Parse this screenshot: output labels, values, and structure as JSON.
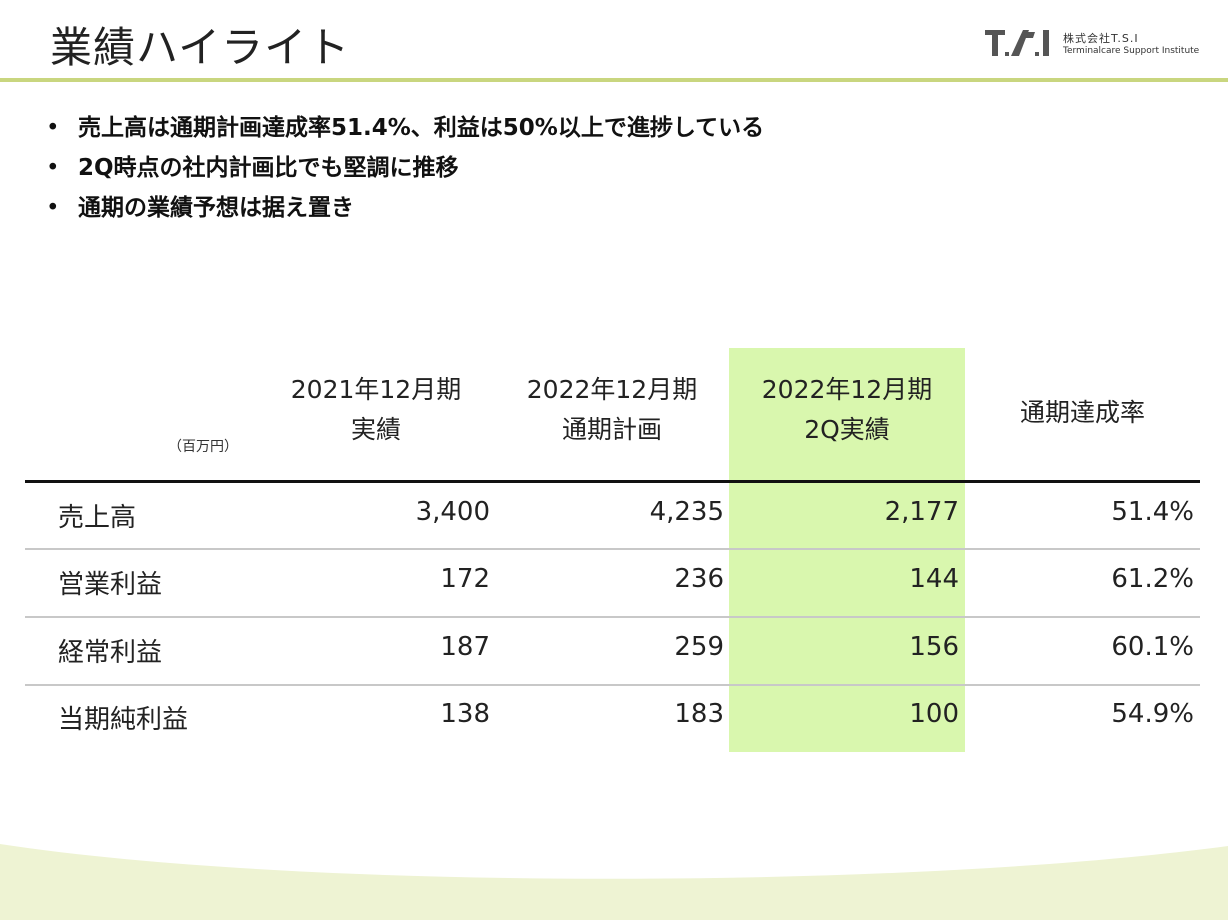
{
  "header": {
    "title": "業績ハイライト",
    "logo": {
      "mark_text": "T.S.I",
      "company": "株式会社T.S.I",
      "sub": "Terminalcare Support Institute"
    }
  },
  "bullets": [
    "売上高は通期計画達成率51.4%、利益は50%以上で進捗している",
    "2Q時点の社内計画比でも堅調に推移",
    "通期の業績予想は据え置き"
  ],
  "table": {
    "unit": "（百万円）",
    "columns": [
      {
        "line1": "2021年12月期",
        "line2": "実績"
      },
      {
        "line1": "2022年12月期",
        "line2": "通期計画"
      },
      {
        "line1": "2022年12月期",
        "line2": "2Q実績"
      },
      {
        "line1": "通期達成率",
        "line2": ""
      }
    ],
    "rows": [
      {
        "label": "売上高",
        "values": [
          "3,400",
          "4,235",
          "2,177",
          "51.4%"
        ]
      },
      {
        "label": "営業利益",
        "values": [
          "172",
          "236",
          "144",
          "61.2%"
        ]
      },
      {
        "label": "経常利益",
        "values": [
          "187",
          "259",
          "156",
          "60.1%"
        ]
      },
      {
        "label": "当期純利益",
        "values": [
          "138",
          "183",
          "100",
          "54.9%"
        ]
      }
    ]
  },
  "colors": {
    "accent_rule": "#c9d67f",
    "highlight_column": "#d9f7ae",
    "wave": "#eef3d3"
  }
}
